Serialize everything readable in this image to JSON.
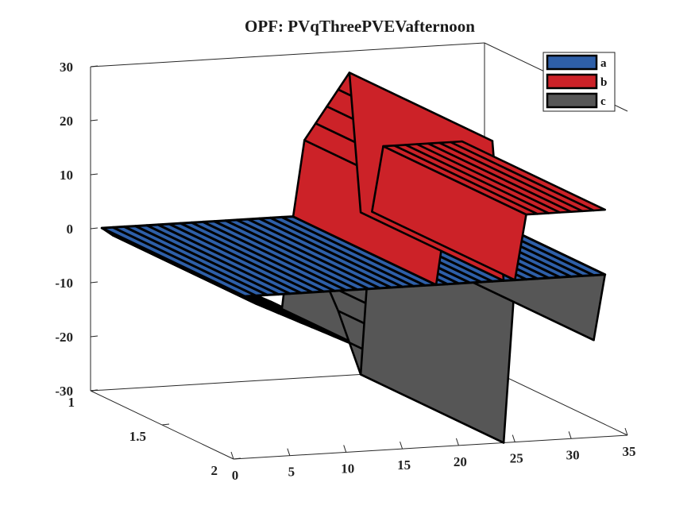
{
  "chart_data": {
    "type": "area",
    "title": "OPF: PVqThreePVEVafternoon",
    "xlabel": "",
    "ylabel": "",
    "zlabel": "",
    "xlim": [
      0,
      35
    ],
    "ylim": [
      1,
      2
    ],
    "zlim": [
      -30,
      30
    ],
    "x_ticks": [
      "0",
      "5",
      "10",
      "15",
      "20",
      "25",
      "30",
      "35"
    ],
    "y_ticks": [
      "1",
      "1.5",
      "2"
    ],
    "z_ticks": [
      "30",
      "20",
      "10",
      "0",
      "-10",
      "-20",
      "-30"
    ],
    "grid": false,
    "legend_position": "top-right",
    "x": [
      1,
      2,
      3,
      4,
      5,
      6,
      7,
      8,
      9,
      10,
      11,
      12,
      13,
      14,
      15,
      16,
      17,
      18,
      19,
      20,
      21,
      22,
      23,
      24,
      25,
      26,
      27,
      28,
      29,
      30,
      31,
      32,
      33
    ],
    "series": [
      {
        "name": "a",
        "color": "#2e5fa8",
        "values": [
          0,
          0,
          0,
          0,
          0,
          0,
          0,
          0,
          0,
          0,
          0,
          0,
          0,
          0,
          0,
          0,
          0,
          0,
          0,
          0,
          0,
          0,
          0,
          0,
          0,
          0,
          0,
          0,
          0,
          0,
          0,
          0,
          0
        ]
      },
      {
        "name": "b",
        "color": "#cc2228",
        "values": [
          0,
          0,
          0,
          0,
          0,
          0,
          0,
          0,
          0,
          0,
          0,
          0,
          0,
          0,
          0,
          0,
          0,
          0,
          14,
          17,
          20,
          23,
          26,
          0,
          0,
          12,
          12,
          12,
          12,
          12,
          12,
          12,
          12
        ]
      },
      {
        "name": "c",
        "color": "#565656",
        "values": [
          0,
          -1.5,
          -2.5,
          -3.5,
          -4.5,
          -5.5,
          -6.5,
          -7.5,
          -8.5,
          -9.5,
          -10.5,
          -11.5,
          -12.5,
          -13.5,
          -14.5,
          -15.5,
          -17,
          0,
          -3,
          -8,
          -13,
          -18,
          -24,
          -30,
          0,
          0,
          -2,
          -4,
          -6,
          -8,
          -10,
          -12,
          0
        ]
      }
    ]
  }
}
